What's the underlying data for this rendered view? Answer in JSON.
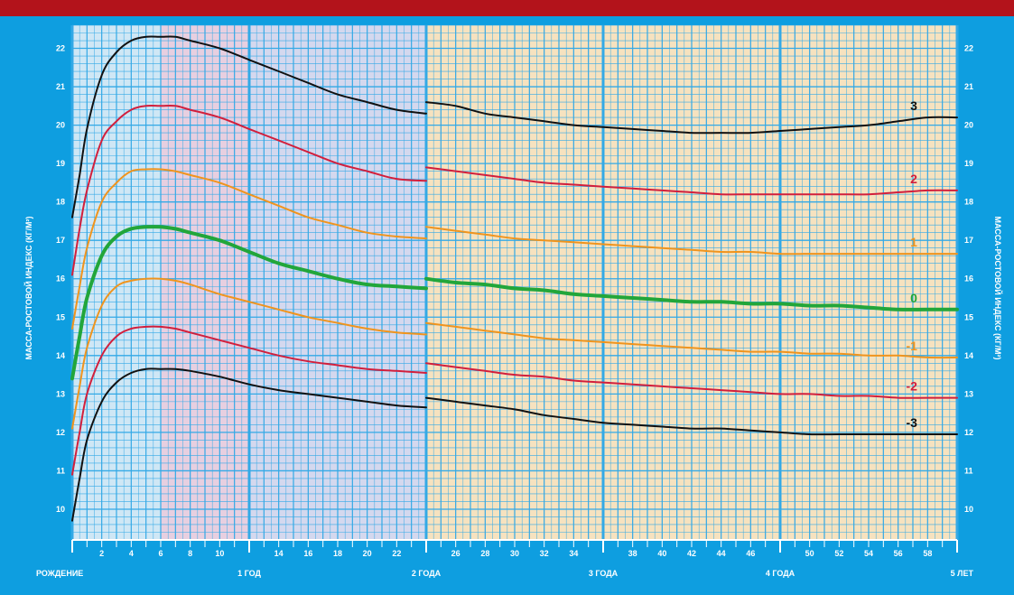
{
  "colors": {
    "background": "#0e9ee0",
    "top_band": "#b3131b",
    "zone_blue": "#cfe7f5",
    "zone_pink": "#e7cfe0",
    "zone_lavender": "#d4d8ee",
    "zone_cream": "#f6e2bf",
    "grid_line": "#33a9e6",
    "axis_text": "#ffffff"
  },
  "chart_data": {
    "type": "line",
    "title": "",
    "ylabel": "МАССА-РОСТОВОЙ ИНДЕКС (КГ/М²)",
    "ylabel_right": "МАССА-РОСТОВОЙ ИНДЕКС (КГ/М²)",
    "xlim": [
      0,
      60
    ],
    "ylim": [
      9.2,
      22.6
    ],
    "y_ticks": [
      10,
      11,
      12,
      13,
      14,
      15,
      16,
      17,
      18,
      19,
      20,
      21,
      22
    ],
    "x_month_ticks": [
      {
        "x": 2,
        "label": "2"
      },
      {
        "x": 4,
        "label": "4"
      },
      {
        "x": 6,
        "label": "6"
      },
      {
        "x": 8,
        "label": "8"
      },
      {
        "x": 10,
        "label": "10"
      },
      {
        "x": 14,
        "label": "14"
      },
      {
        "x": 16,
        "label": "16"
      },
      {
        "x": 18,
        "label": "18"
      },
      {
        "x": 20,
        "label": "20"
      },
      {
        "x": 22,
        "label": "22"
      },
      {
        "x": 26,
        "label": "26"
      },
      {
        "x": 28,
        "label": "28"
      },
      {
        "x": 30,
        "label": "30"
      },
      {
        "x": 32,
        "label": "32"
      },
      {
        "x": 34,
        "label": "34"
      },
      {
        "x": 38,
        "label": "38"
      },
      {
        "x": 40,
        "label": "40"
      },
      {
        "x": 42,
        "label": "42"
      },
      {
        "x": 44,
        "label": "44"
      },
      {
        "x": 46,
        "label": "46"
      },
      {
        "x": 50,
        "label": "50"
      },
      {
        "x": 52,
        "label": "52"
      },
      {
        "x": 54,
        "label": "54"
      },
      {
        "x": 56,
        "label": "56"
      },
      {
        "x": 58,
        "label": "58"
      }
    ],
    "x_year_labels": [
      {
        "x": 0,
        "label": "РОЖДЕНИЕ"
      },
      {
        "x": 12,
        "label": "1 ГОД"
      },
      {
        "x": 24,
        "label": "2 ГОДА"
      },
      {
        "x": 36,
        "label": "3 ГОДА"
      },
      {
        "x": 48,
        "label": "4 ГОДА"
      },
      {
        "x": 60,
        "label": "5 ЛЕТ"
      }
    ],
    "grid": true,
    "break_at": 24,
    "series": [
      {
        "name": "3",
        "color": "#111111",
        "width": 2,
        "x": [
          0,
          0.5,
          1,
          2,
          3,
          4,
          5,
          6,
          7,
          8,
          10,
          12,
          14,
          16,
          18,
          20,
          22,
          24,
          24,
          26,
          28,
          30,
          32,
          34,
          36,
          38,
          40,
          42,
          44,
          46,
          48,
          50,
          52,
          54,
          56,
          58,
          60
        ],
        "y": [
          17.6,
          18.7,
          19.9,
          21.3,
          21.9,
          22.2,
          22.3,
          22.3,
          22.3,
          22.2,
          22.0,
          21.7,
          21.4,
          21.1,
          20.8,
          20.6,
          20.4,
          20.3,
          20.6,
          20.5,
          20.3,
          20.2,
          20.1,
          20.0,
          19.95,
          19.9,
          19.85,
          19.8,
          19.8,
          19.8,
          19.85,
          19.9,
          19.95,
          20.0,
          20.1,
          20.2,
          20.2
        ]
      },
      {
        "name": "2",
        "color": "#d21f3c",
        "width": 2,
        "x": [
          0,
          0.5,
          1,
          2,
          3,
          4,
          5,
          6,
          7,
          8,
          10,
          12,
          14,
          16,
          18,
          20,
          22,
          24,
          24,
          26,
          28,
          30,
          32,
          34,
          36,
          38,
          40,
          42,
          44,
          46,
          48,
          50,
          52,
          54,
          56,
          58,
          60
        ],
        "y": [
          16.1,
          17.3,
          18.3,
          19.6,
          20.1,
          20.4,
          20.5,
          20.5,
          20.5,
          20.4,
          20.2,
          19.9,
          19.6,
          19.3,
          19.0,
          18.8,
          18.6,
          18.55,
          18.9,
          18.8,
          18.7,
          18.6,
          18.5,
          18.45,
          18.4,
          18.35,
          18.3,
          18.25,
          18.2,
          18.2,
          18.2,
          18.2,
          18.2,
          18.2,
          18.25,
          18.3,
          18.3
        ]
      },
      {
        "name": "1",
        "color": "#f0941d",
        "width": 2,
        "x": [
          0,
          0.5,
          1,
          2,
          3,
          4,
          5,
          6,
          7,
          8,
          10,
          12,
          14,
          16,
          18,
          20,
          22,
          24,
          24,
          26,
          28,
          30,
          32,
          34,
          36,
          38,
          40,
          42,
          44,
          46,
          48,
          50,
          52,
          54,
          56,
          58,
          60
        ],
        "y": [
          14.7,
          15.8,
          16.8,
          18.0,
          18.5,
          18.8,
          18.85,
          18.85,
          18.8,
          18.7,
          18.5,
          18.2,
          17.9,
          17.6,
          17.4,
          17.2,
          17.1,
          17.05,
          17.35,
          17.25,
          17.15,
          17.05,
          17.0,
          16.95,
          16.9,
          16.85,
          16.8,
          16.75,
          16.7,
          16.7,
          16.65,
          16.65,
          16.65,
          16.65,
          16.65,
          16.65,
          16.65
        ]
      },
      {
        "name": "0",
        "color": "#22a63a",
        "width": 4,
        "x": [
          0,
          0.5,
          1,
          2,
          3,
          4,
          5,
          6,
          7,
          8,
          10,
          12,
          14,
          16,
          18,
          20,
          22,
          24,
          24,
          26,
          28,
          30,
          32,
          34,
          36,
          38,
          40,
          42,
          44,
          46,
          48,
          50,
          52,
          54,
          56,
          58,
          60
        ],
        "y": [
          13.4,
          14.5,
          15.5,
          16.6,
          17.1,
          17.3,
          17.35,
          17.35,
          17.3,
          17.2,
          17.0,
          16.7,
          16.4,
          16.2,
          16.0,
          15.85,
          15.8,
          15.75,
          16.0,
          15.9,
          15.85,
          15.75,
          15.7,
          15.6,
          15.55,
          15.5,
          15.45,
          15.4,
          15.4,
          15.35,
          15.35,
          15.3,
          15.3,
          15.25,
          15.2,
          15.2,
          15.2
        ]
      },
      {
        "name": "-1",
        "color": "#f0941d",
        "width": 2,
        "x": [
          0,
          0.5,
          1,
          2,
          3,
          4,
          5,
          6,
          7,
          8,
          10,
          12,
          14,
          16,
          18,
          20,
          22,
          24,
          24,
          26,
          28,
          30,
          32,
          34,
          36,
          38,
          40,
          42,
          44,
          46,
          48,
          50,
          52,
          54,
          56,
          58,
          60
        ],
        "y": [
          12.1,
          13.2,
          14.2,
          15.3,
          15.8,
          15.95,
          16.0,
          16.0,
          15.95,
          15.85,
          15.6,
          15.4,
          15.2,
          15.0,
          14.85,
          14.7,
          14.6,
          14.55,
          14.85,
          14.75,
          14.65,
          14.55,
          14.45,
          14.4,
          14.35,
          14.3,
          14.25,
          14.2,
          14.15,
          14.1,
          14.1,
          14.05,
          14.05,
          14.0,
          14.0,
          13.95,
          13.95
        ]
      },
      {
        "name": "-2",
        "color": "#d21f3c",
        "width": 2,
        "x": [
          0,
          0.5,
          1,
          2,
          3,
          4,
          5,
          6,
          7,
          8,
          10,
          12,
          14,
          16,
          18,
          20,
          22,
          24,
          24,
          26,
          28,
          30,
          32,
          34,
          36,
          38,
          40,
          42,
          44,
          46,
          48,
          50,
          52,
          54,
          56,
          58,
          60
        ],
        "y": [
          10.9,
          12.0,
          13.0,
          14.0,
          14.5,
          14.7,
          14.75,
          14.75,
          14.7,
          14.6,
          14.4,
          14.2,
          14.0,
          13.85,
          13.75,
          13.65,
          13.6,
          13.55,
          13.8,
          13.7,
          13.6,
          13.5,
          13.45,
          13.35,
          13.3,
          13.25,
          13.2,
          13.15,
          13.1,
          13.05,
          13.0,
          13.0,
          12.95,
          12.95,
          12.9,
          12.9,
          12.9
        ]
      },
      {
        "name": "-3",
        "color": "#111111",
        "width": 2,
        "x": [
          0,
          0.5,
          1,
          2,
          3,
          4,
          5,
          6,
          7,
          8,
          10,
          12,
          14,
          16,
          18,
          20,
          22,
          24,
          24,
          26,
          28,
          30,
          32,
          34,
          36,
          38,
          40,
          42,
          44,
          46,
          48,
          50,
          52,
          54,
          56,
          58,
          60
        ],
        "y": [
          9.7,
          10.8,
          11.8,
          12.8,
          13.3,
          13.55,
          13.65,
          13.65,
          13.65,
          13.6,
          13.45,
          13.25,
          13.1,
          13.0,
          12.9,
          12.8,
          12.7,
          12.65,
          12.9,
          12.8,
          12.7,
          12.6,
          12.45,
          12.35,
          12.25,
          12.2,
          12.15,
          12.1,
          12.1,
          12.05,
          12.0,
          11.95,
          11.95,
          11.95,
          11.95,
          11.95,
          11.95
        ]
      }
    ]
  }
}
